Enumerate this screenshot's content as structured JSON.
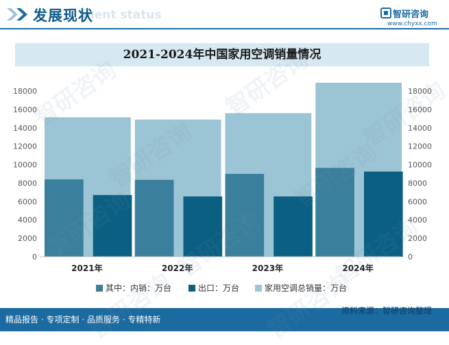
{
  "header": {
    "title": "发展现状",
    "subtitle": "ment status"
  },
  "brand": {
    "name": "智研咨询",
    "url": "www.chyxx.com"
  },
  "footer": {
    "left_text": "精品报告 · 专项定制 · 品质服务 · 专精特新",
    "source": "资料来源：智研咨询整理"
  },
  "watermark_text": "智研咨询",
  "colors": {
    "total": "#9bc4d4",
    "domestic": "#3a7f9c",
    "export": "#0b5f82",
    "header_blue": "#1b6aa0",
    "title_band": "#d6e8f1"
  },
  "chart_data": {
    "type": "bar",
    "title": "2021-2024年中国家用空调销量情况",
    "categories": [
      "2021年",
      "2022年",
      "2023年",
      "2024年"
    ],
    "series": [
      {
        "name": "其中：内销：万台",
        "values": [
          8400,
          8350,
          9000,
          9650
        ],
        "axis": "left"
      },
      {
        "name": "出口：万台",
        "values": [
          6700,
          6550,
          6550,
          9250
        ],
        "axis": "left"
      },
      {
        "name": "家用空调总销量：万台",
        "values": [
          15150,
          14900,
          15600,
          18900
        ],
        "axis": "right"
      }
    ],
    "ylim": [
      0,
      18000
    ],
    "y_ticks": [
      0,
      2000,
      4000,
      6000,
      8000,
      10000,
      12000,
      14000,
      16000,
      18000
    ],
    "y2lim": [
      0,
      18000
    ],
    "grid": false,
    "legend_position": "bottom"
  }
}
